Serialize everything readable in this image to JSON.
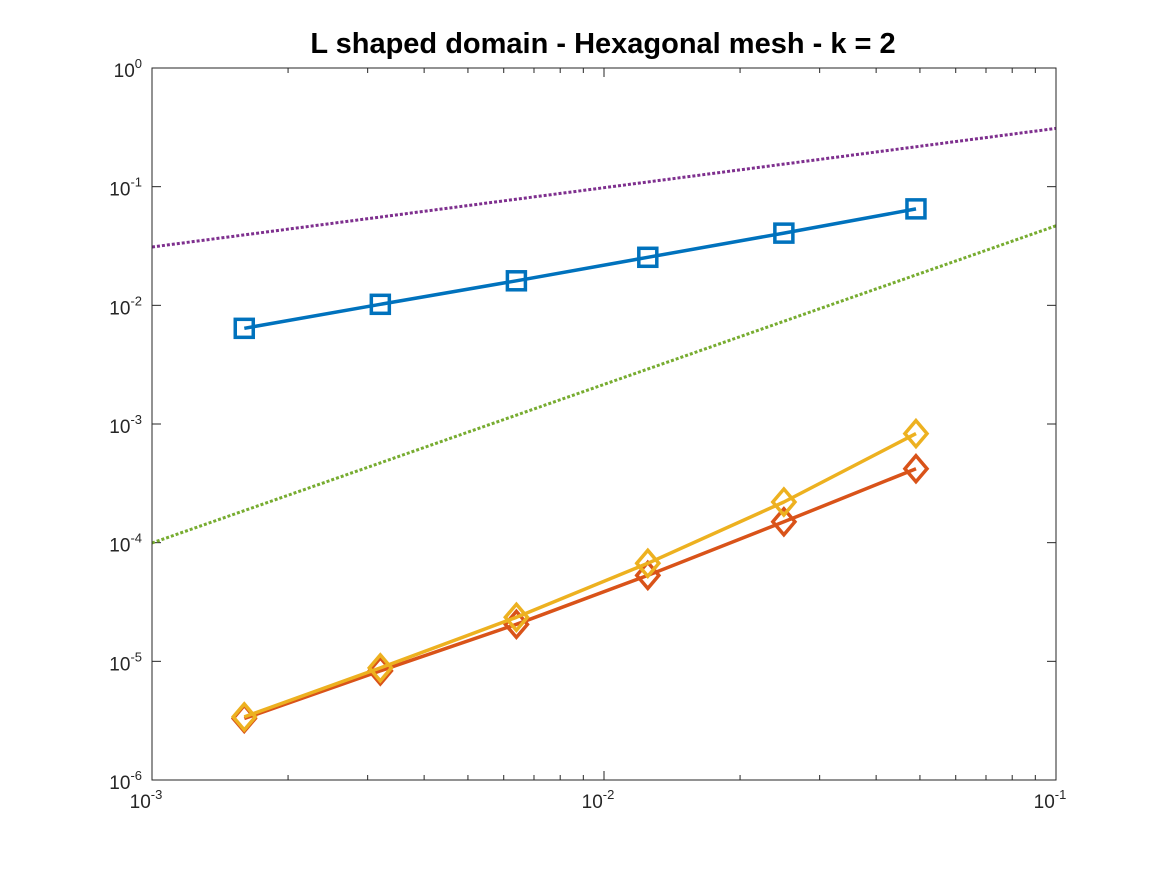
{
  "chart_data": {
    "type": "line",
    "title": "L shaped domain - Hexagonal mesh - k = 2",
    "xlabel": "",
    "ylabel": "",
    "xscale": "log",
    "yscale": "log",
    "xlim": [
      0.001,
      0.1
    ],
    "ylim": [
      1e-06,
      1
    ],
    "grid": false,
    "legend": "none",
    "x_ticks": [
      {
        "base": "10",
        "exp": "-3",
        "value": 0.001
      },
      {
        "base": "10",
        "exp": "-2",
        "value": 0.01
      },
      {
        "base": "10",
        "exp": "-1",
        "value": 0.1
      }
    ],
    "y_ticks": [
      {
        "base": "10",
        "exp": "-6",
        "value": 1e-06
      },
      {
        "base": "10",
        "exp": "-5",
        "value": 1e-05
      },
      {
        "base": "10",
        "exp": "-4",
        "value": 0.0001
      },
      {
        "base": "10",
        "exp": "-3",
        "value": 0.001
      },
      {
        "base": "10",
        "exp": "-2",
        "value": 0.01
      },
      {
        "base": "10",
        "exp": "-1",
        "value": 0.1
      },
      {
        "base": "10",
        "exp": "0",
        "value": 1
      }
    ],
    "series": [
      {
        "color": "#0072BD",
        "marker": "square",
        "style": "solid",
        "x": [
          0.0016,
          0.0032,
          0.0064,
          0.0125,
          0.025,
          0.049
        ],
        "y": [
          0.0064,
          0.0102,
          0.0161,
          0.0254,
          0.0406,
          0.065
        ]
      },
      {
        "color": "#D95319",
        "marker": "diamond",
        "style": "solid",
        "x": [
          0.0016,
          0.0032,
          0.0064,
          0.0125,
          0.025,
          0.049
        ],
        "y": [
          3.3e-06,
          8.3e-06,
          2.05e-05,
          5.3e-05,
          0.00015,
          0.00042
        ]
      },
      {
        "color": "#EDB120",
        "marker": "diamond",
        "style": "solid",
        "x": [
          0.0016,
          0.0032,
          0.0064,
          0.0125,
          0.025,
          0.049
        ],
        "y": [
          3.4e-06,
          8.8e-06,
          2.35e-05,
          6.7e-05,
          0.00022,
          0.00083
        ]
      },
      {
        "color": "#7E2F8E",
        "marker": "none",
        "style": "dotted",
        "x": [
          0.001,
          0.1
        ],
        "y": [
          0.031,
          0.31
        ]
      },
      {
        "color": "#77AC30",
        "marker": "none",
        "style": "dotted",
        "x": [
          0.001,
          0.1
        ],
        "y": [
          9.93e-05,
          0.0468
        ]
      }
    ]
  }
}
